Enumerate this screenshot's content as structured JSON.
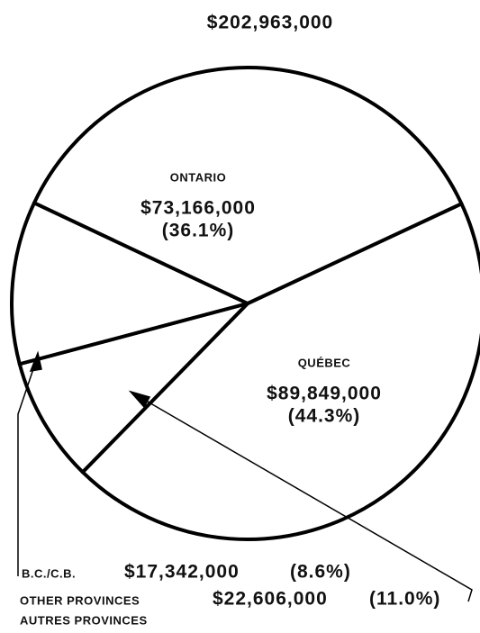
{
  "chart_data": {
    "type": "pie",
    "title": "$202,963,000",
    "categories": [
      "QUÉBEC",
      "B.C./C.B.",
      [
        "OTHER PROVINCES",
        "AUTRES PROVINCES"
      ],
      "ONTARIO"
    ],
    "values": [
      89849000,
      17342000,
      22606000,
      73166000
    ],
    "value_labels": [
      "$89,849,000",
      "$17,342,000",
      "$22,606,000",
      "$73,166,000"
    ],
    "percent_labels": [
      "(44.3%)",
      "(8.6%)",
      "(11.0%)",
      "(36.1%)"
    ],
    "color": "#ffffff",
    "edge_color": "#000000"
  }
}
